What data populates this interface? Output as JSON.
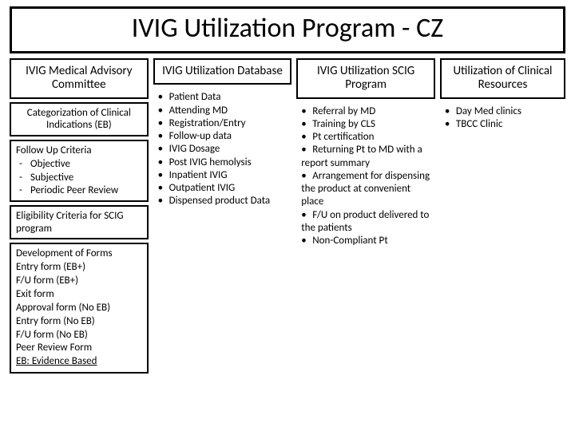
{
  "title": "IVIG Utilization Program - CZ",
  "columns": [
    {
      "header": "IVIG Medical Advisory Committee",
      "boxes": [
        {
          "type": "center",
          "text": "Categorization of Clinical Indications (EB)"
        },
        {
          "type": "followup",
          "title": "Follow Up Criteria",
          "items": [
            "Objective",
            "Subjective",
            "Periodic Peer Review"
          ]
        },
        {
          "type": "plain",
          "text": "Eligibility Criteria for SCIG program"
        },
        {
          "type": "forms",
          "title": "Development of Forms",
          "lines": [
            "Entry form (EB+)",
            "F/U form (EB+)",
            "Exit form",
            "Approval form (No EB)",
            "Entry form (No EB)",
            "F/U form (No EB)",
            "Peer Review Form"
          ],
          "footnote": "EB: Evidence Based"
        }
      ]
    },
    {
      "header": "IVIG Utilization Database",
      "bullets": [
        "Patient  Data",
        "Attending MD",
        "Registration/Entry",
        "Follow-up data",
        "IVIG Dosage",
        "Post IVIG hemolysis",
        "Inpatient IVIG",
        "Outpatient IVIG",
        "Dispensed product Data"
      ]
    },
    {
      "header": "IVIG Utilization SCIG Program",
      "bullets": [
        "Referral by MD",
        "Training by CLS",
        "Pt certification",
        "Returning Pt to MD with a report summary",
        "Arrangement for dispensing the product at convenient place",
        "F/U on product delivered to the patients",
        "Non-Compliant Pt"
      ]
    },
    {
      "header": "Utilization of Clinical Resources",
      "bullets": [
        "Day Med clinics",
        "TBCC Clinic"
      ]
    }
  ],
  "style": {
    "border_color": "#000000",
    "background": "#ffffff",
    "title_fontsize": 34,
    "header_fontsize": 15,
    "body_fontsize": 13
  }
}
